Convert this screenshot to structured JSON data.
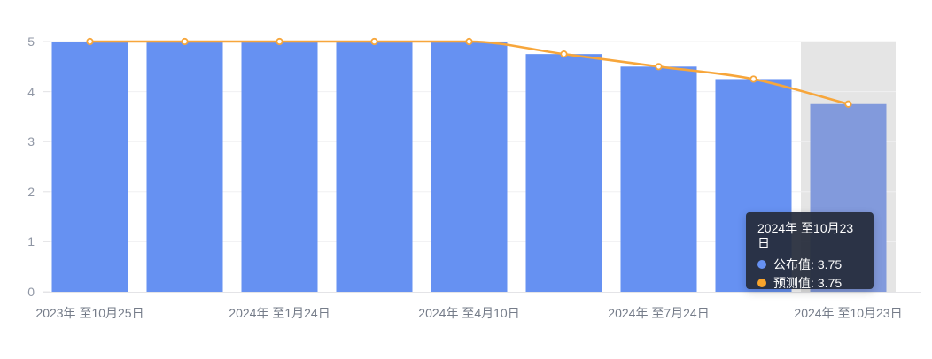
{
  "chart_data": {
    "type": "bar",
    "title": "",
    "num_categories": 9,
    "x_tick_labels": [
      "2023年 至10月25日",
      "2024年 至1月24日",
      "2024年 至4月10日",
      "2024年 至7月24日",
      "2024年 至10月23日"
    ],
    "x_tick_category_indices": [
      0,
      2,
      4,
      6,
      8
    ],
    "y_ticks": [
      0,
      1,
      2,
      3,
      4,
      5
    ],
    "ylim": [
      0,
      5
    ],
    "grid": true,
    "series": [
      {
        "name": "公布值",
        "type": "bar",
        "color": "#6691f2",
        "values": [
          5,
          5,
          5,
          5,
          5,
          4.75,
          4.5,
          4.25,
          3.75
        ]
      },
      {
        "name": "预测值",
        "type": "line",
        "color": "#f7a63b",
        "marker": "hollow-circle",
        "values": [
          5,
          5,
          5,
          5,
          5,
          4.75,
          4.5,
          4.25,
          3.75
        ]
      }
    ],
    "highlighted_category_index": 8,
    "highlighted_bar_color": "#829adc",
    "highlight_band_color": "rgba(160,160,160,0.28)"
  },
  "tooltip": {
    "title": "2024年 至10月23日",
    "rows": [
      {
        "label": "公布值:",
        "value": "3.75",
        "color": "#6691f2"
      },
      {
        "label": "预测值:",
        "value": "3.75",
        "color": "#f9a42c"
      }
    ]
  }
}
